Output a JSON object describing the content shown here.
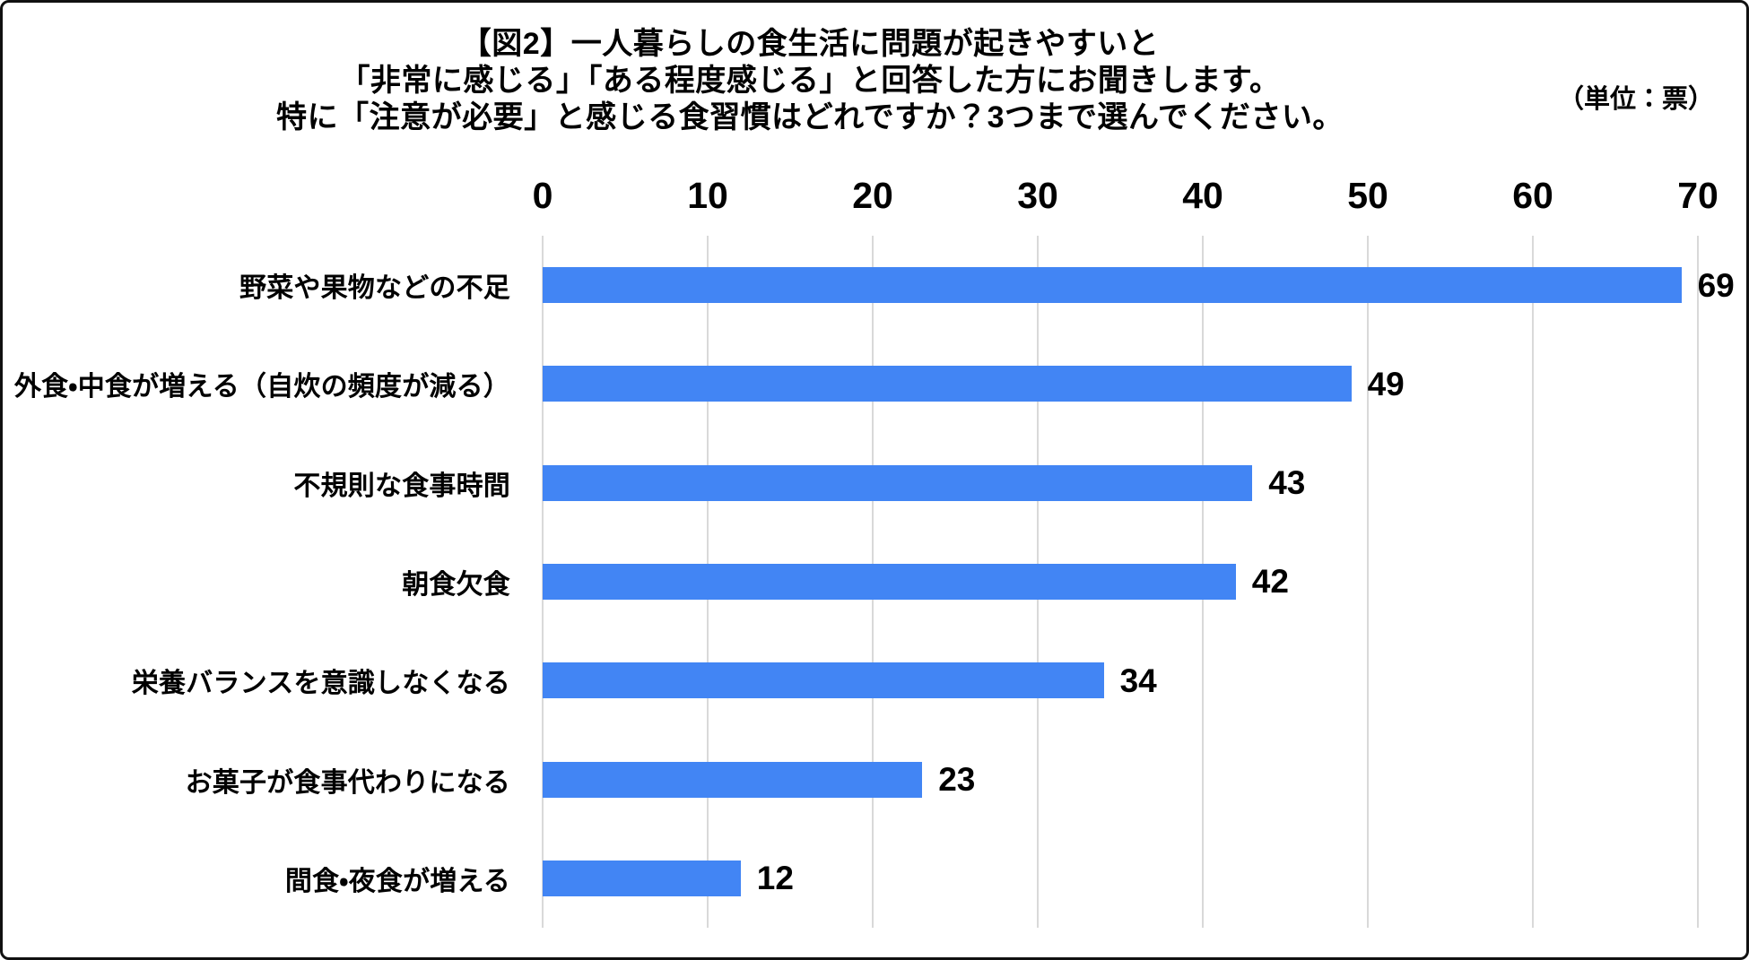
{
  "figure": {
    "title_lines": [
      "【図2】一人暮らしの食生活に問題が起きやすいと",
      "「非常に感じる」「ある程度感じる」と回答した方にお聞きします。",
      "特に「注意が必要」と感じる食習慣はどれですか？3つまで選んでください。"
    ],
    "unit_label": "（単位：票）"
  },
  "chart_data": {
    "type": "bar",
    "orientation": "horizontal",
    "title": "【図2】一人暮らしの食生活に問題が起きやすいと「非常に感じる」「ある程度感じる」と回答した方にお聞きします。特に「注意が必要」と感じる食習慣はどれですか？3つまで選んでください。",
    "unit": "票",
    "categories": [
      "野菜や果物などの不足",
      "外食・中食が増える（自炊の頻度が減る）",
      "不規則な食事時間",
      "朝食欠食",
      "栄養バランスを意識しなくなる",
      "お菓子が食事代わりになる",
      "間食・夜食が増える"
    ],
    "values": [
      69,
      49,
      43,
      42,
      34,
      23,
      12
    ],
    "x_ticks": [
      0,
      10,
      20,
      30,
      40,
      50,
      60,
      70
    ],
    "xlim": [
      0,
      70
    ],
    "grid": true,
    "legend": false,
    "value_labels": true,
    "bar_color": "#4285F4",
    "gridline_color": "#d9d9d9",
    "text_color": "#000000",
    "background_color": "#ffffff"
  }
}
